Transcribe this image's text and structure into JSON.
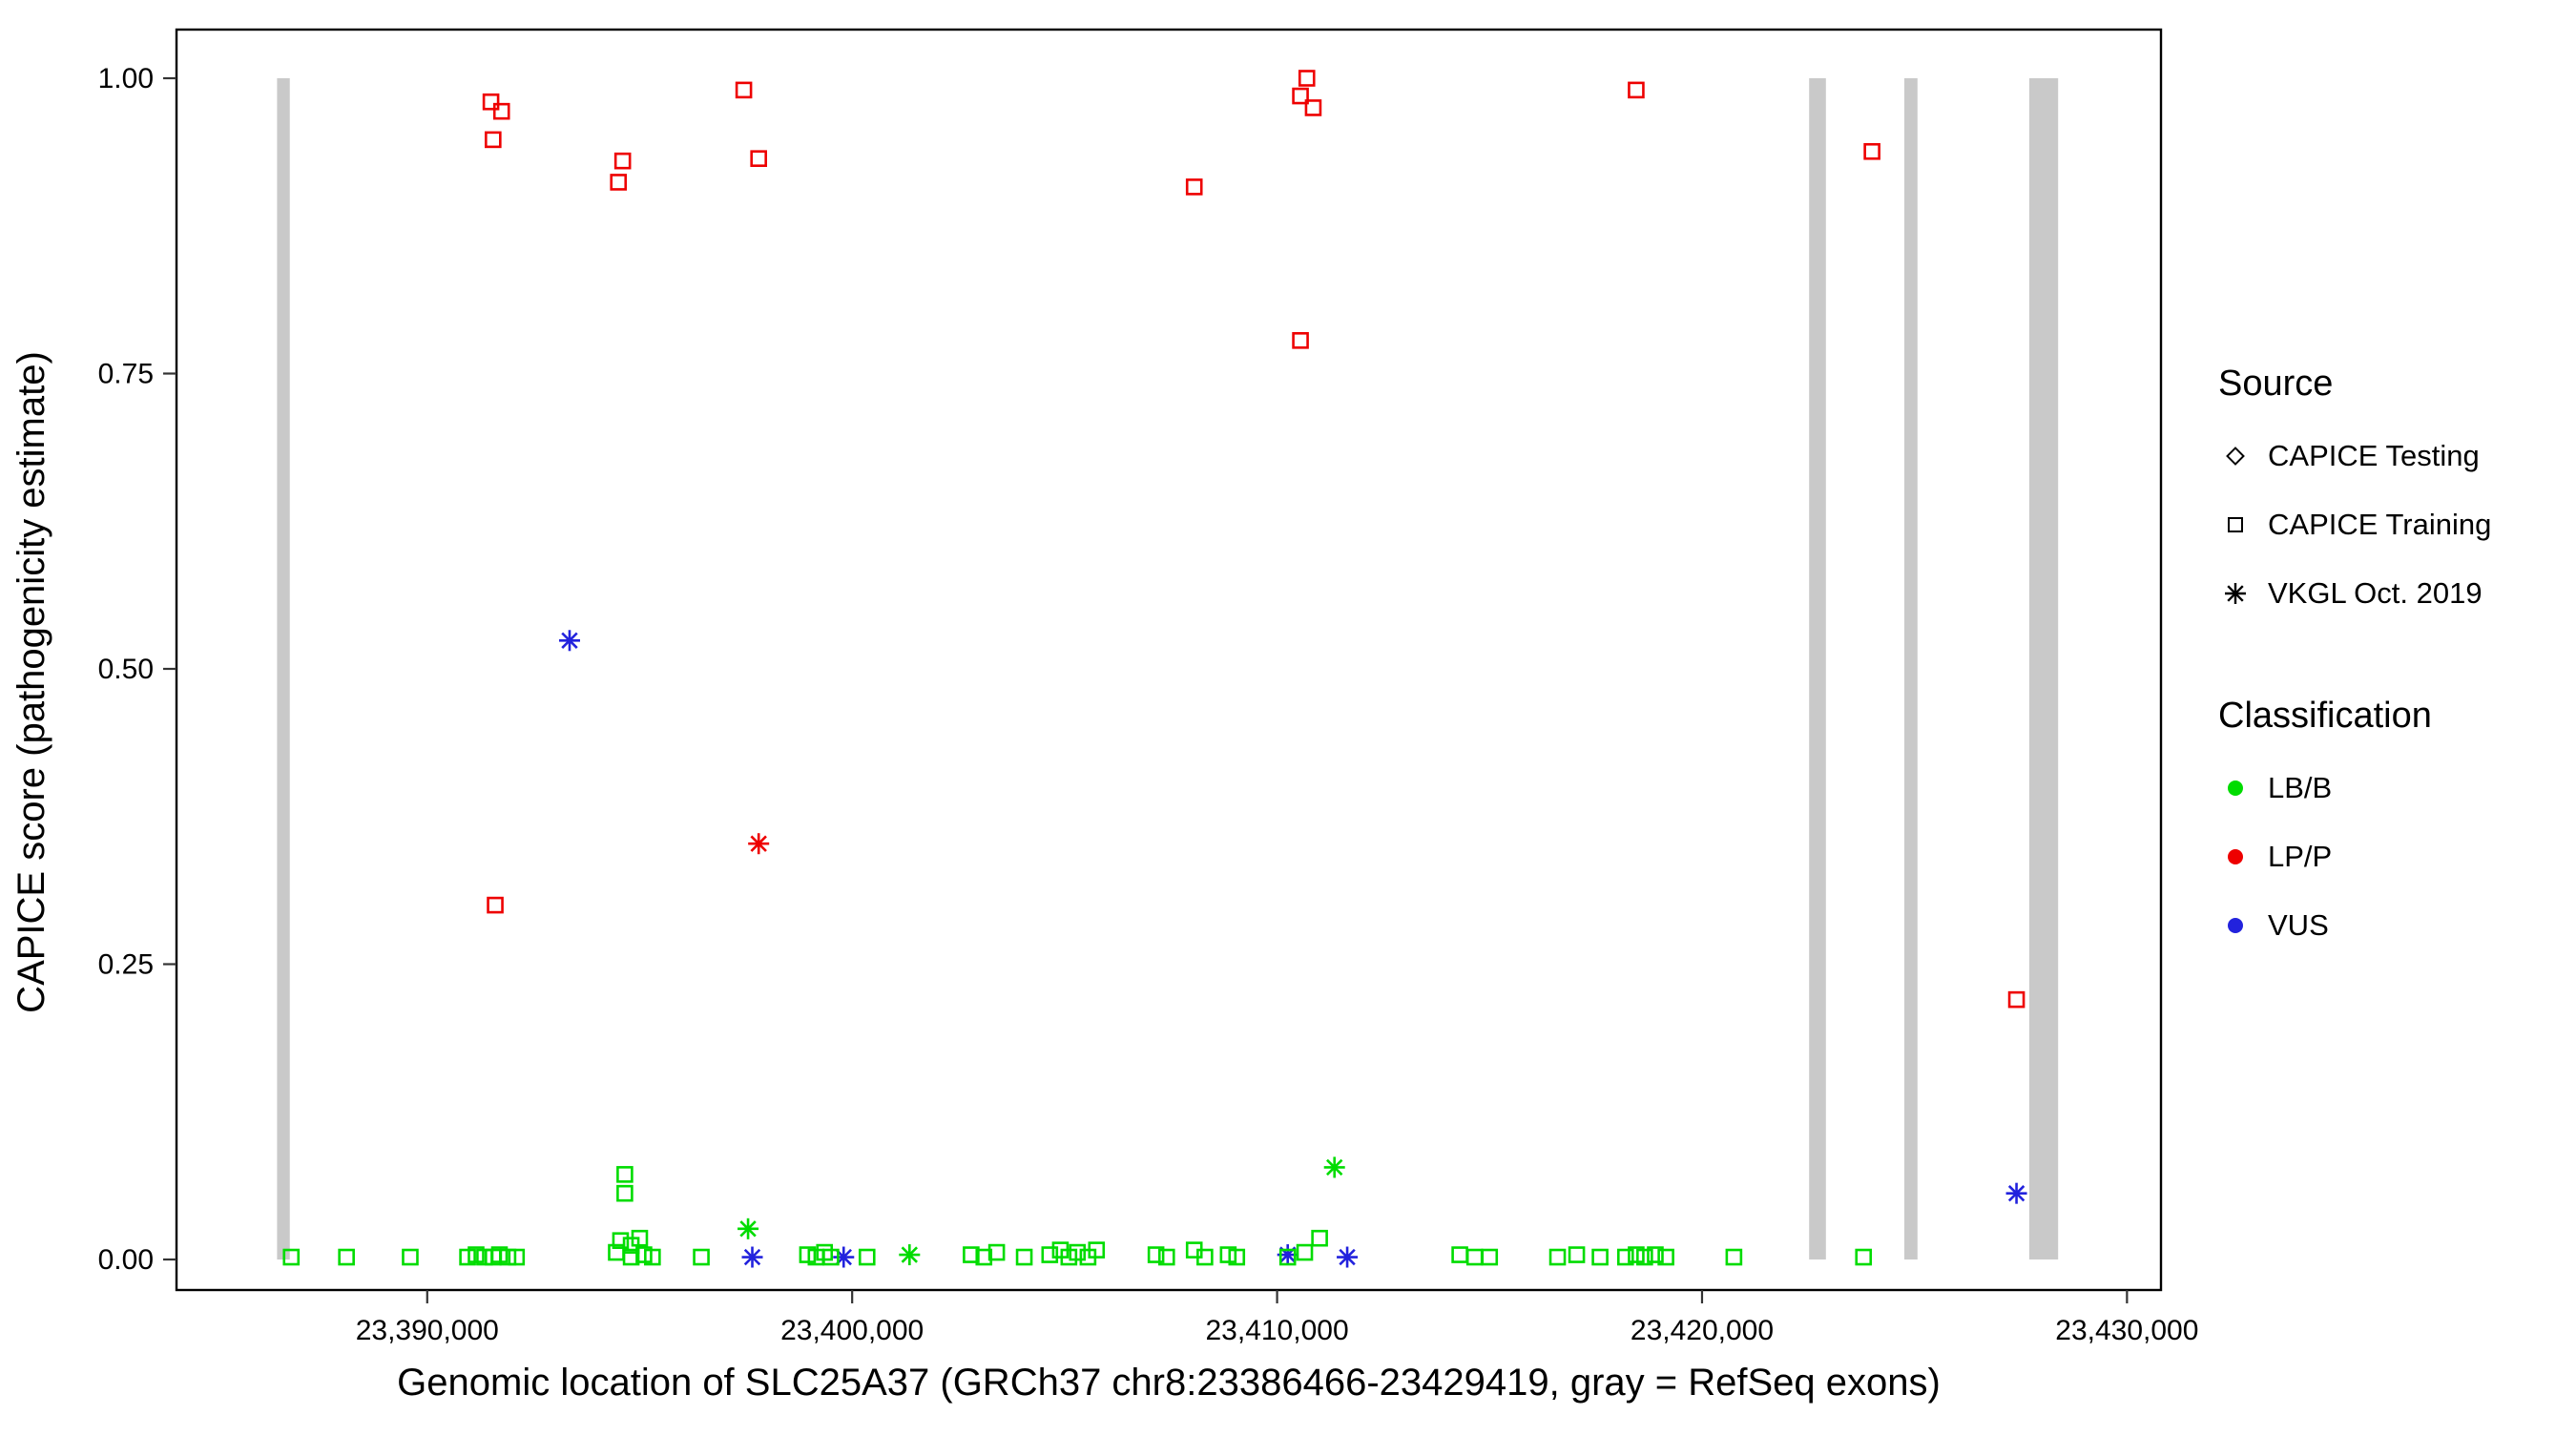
{
  "legend": {
    "source": {
      "title": "Source",
      "items": [
        {
          "label": "CAPICE Testing",
          "marker": "diamond"
        },
        {
          "label": "CAPICE Training",
          "marker": "square"
        },
        {
          "label": "VKGL Oct. 2019",
          "marker": "asterisk"
        }
      ]
    },
    "classification": {
      "title": "Classification",
      "items": [
        {
          "label": "LB/B",
          "color": "#00dc00"
        },
        {
          "label": "LP/P",
          "color": "#ee0000"
        },
        {
          "label": "VUS",
          "color": "#2222dd"
        }
      ]
    }
  },
  "chart_data": {
    "type": "scatter",
    "xlabel": "Genomic location of SLC25A37 (GRCh37 chr8:23386466-23429419, gray = RefSeq exons)",
    "ylabel": "CAPICE score (pathogenicity estimate)",
    "x_domain": [
      23384100,
      23430800
    ],
    "y_domain": [
      0,
      1
    ],
    "grid": false,
    "legend_position": "right",
    "x_ticks": [
      {
        "value": 23390000,
        "label": "23,390,000"
      },
      {
        "value": 23400000,
        "label": "23,400,000"
      },
      {
        "value": 23410000,
        "label": "23,410,000"
      },
      {
        "value": 23420000,
        "label": "23,420,000"
      },
      {
        "value": 23430000,
        "label": "23,430,000"
      }
    ],
    "y_ticks": [
      {
        "value": 0.0,
        "label": "0.00"
      },
      {
        "value": 0.25,
        "label": "0.25"
      },
      {
        "value": 0.5,
        "label": "0.50"
      },
      {
        "value": 0.75,
        "label": "0.75"
      },
      {
        "value": 1.0,
        "label": "1.00"
      }
    ],
    "colors": {
      "LB/B": "#00dc00",
      "LP/P": "#ee0000",
      "VUS": "#2222dd",
      "exon": "#c9c9c9"
    },
    "exons": [
      [
        23386466,
        23386766
      ],
      [
        23422520,
        23422915
      ],
      [
        23424760,
        23425070
      ],
      [
        23427700,
        23428380
      ]
    ],
    "points": [
      {
        "x": 23391500,
        "y": 0.98,
        "cls": "LP/P",
        "src": "CAPICE Training"
      },
      {
        "x": 23391750,
        "y": 0.972,
        "cls": "LP/P",
        "src": "CAPICE Training"
      },
      {
        "x": 23391550,
        "y": 0.948,
        "cls": "LP/P",
        "src": "CAPICE Training"
      },
      {
        "x": 23394600,
        "y": 0.93,
        "cls": "LP/P",
        "src": "CAPICE Training"
      },
      {
        "x": 23394500,
        "y": 0.912,
        "cls": "LP/P",
        "src": "CAPICE Training"
      },
      {
        "x": 23397450,
        "y": 0.99,
        "cls": "LP/P",
        "src": "CAPICE Training"
      },
      {
        "x": 23397800,
        "y": 0.932,
        "cls": "LP/P",
        "src": "CAPICE Training"
      },
      {
        "x": 23408050,
        "y": 0.908,
        "cls": "LP/P",
        "src": "CAPICE Training"
      },
      {
        "x": 23410700,
        "y": 1.0,
        "cls": "LP/P",
        "src": "CAPICE Training"
      },
      {
        "x": 23410550,
        "y": 0.985,
        "cls": "LP/P",
        "src": "CAPICE Training"
      },
      {
        "x": 23410850,
        "y": 0.975,
        "cls": "LP/P",
        "src": "CAPICE Training"
      },
      {
        "x": 23410550,
        "y": 0.778,
        "cls": "LP/P",
        "src": "CAPICE Training"
      },
      {
        "x": 23418450,
        "y": 0.99,
        "cls": "LP/P",
        "src": "CAPICE Training"
      },
      {
        "x": 23424000,
        "y": 0.938,
        "cls": "LP/P",
        "src": "CAPICE Training"
      },
      {
        "x": 23391600,
        "y": 0.3,
        "cls": "LP/P",
        "src": "CAPICE Training"
      },
      {
        "x": 23427400,
        "y": 0.22,
        "cls": "LP/P",
        "src": "CAPICE Training"
      },
      {
        "x": 23397800,
        "y": 0.352,
        "cls": "LP/P",
        "src": "VKGL Oct. 2019"
      },
      {
        "x": 23393350,
        "y": 0.524,
        "cls": "VUS",
        "src": "VKGL Oct. 2019"
      },
      {
        "x": 23427400,
        "y": 0.056,
        "cls": "VUS",
        "src": "VKGL Oct. 2019"
      },
      {
        "x": 23397650,
        "y": 0.002,
        "cls": "VUS",
        "src": "VKGL Oct. 2019"
      },
      {
        "x": 23399800,
        "y": 0.002,
        "cls": "VUS",
        "src": "VKGL Oct. 2019"
      },
      {
        "x": 23410250,
        "y": 0.004,
        "cls": "VUS",
        "src": "VKGL Oct. 2019"
      },
      {
        "x": 23411650,
        "y": 0.002,
        "cls": "VUS",
        "src": "VKGL Oct. 2019"
      },
      {
        "x": 23397550,
        "y": 0.026,
        "cls": "LB/B",
        "src": "VKGL Oct. 2019"
      },
      {
        "x": 23401350,
        "y": 0.004,
        "cls": "LB/B",
        "src": "VKGL Oct. 2019"
      },
      {
        "x": 23411350,
        "y": 0.078,
        "cls": "LB/B",
        "src": "VKGL Oct. 2019"
      },
      {
        "x": 23394650,
        "y": 0.072,
        "cls": "LB/B",
        "src": "CAPICE Training"
      },
      {
        "x": 23394650,
        "y": 0.056,
        "cls": "LB/B",
        "src": "CAPICE Training"
      },
      {
        "x": 23394550,
        "y": 0.016,
        "cls": "LB/B",
        "src": "CAPICE Training"
      },
      {
        "x": 23394800,
        "y": 0.012,
        "cls": "LB/B",
        "src": "CAPICE Training"
      },
      {
        "x": 23395000,
        "y": 0.018,
        "cls": "LB/B",
        "src": "CAPICE Training"
      },
      {
        "x": 23411000,
        "y": 0.018,
        "cls": "LB/B",
        "src": "CAPICE Training"
      },
      {
        "x": 23386800,
        "y": 0.002,
        "cls": "LB/B",
        "src": "CAPICE Training"
      },
      {
        "x": 23388100,
        "y": 0.002,
        "cls": "LB/B",
        "src": "CAPICE Training"
      },
      {
        "x": 23389600,
        "y": 0.002,
        "cls": "LB/B",
        "src": "CAPICE Training"
      },
      {
        "x": 23390950,
        "y": 0.002,
        "cls": "LB/B",
        "src": "CAPICE Training"
      },
      {
        "x": 23391150,
        "y": 0.004,
        "cls": "LB/B",
        "src": "CAPICE Training"
      },
      {
        "x": 23391350,
        "y": 0.002,
        "cls": "LB/B",
        "src": "CAPICE Training"
      },
      {
        "x": 23391550,
        "y": 0.002,
        "cls": "LB/B",
        "src": "CAPICE Training"
      },
      {
        "x": 23391700,
        "y": 0.004,
        "cls": "LB/B",
        "src": "CAPICE Training"
      },
      {
        "x": 23391900,
        "y": 0.002,
        "cls": "LB/B",
        "src": "CAPICE Training"
      },
      {
        "x": 23392100,
        "y": 0.002,
        "cls": "LB/B",
        "src": "CAPICE Training"
      },
      {
        "x": 23394450,
        "y": 0.006,
        "cls": "LB/B",
        "src": "CAPICE Training"
      },
      {
        "x": 23394800,
        "y": 0.002,
        "cls": "LB/B",
        "src": "CAPICE Training"
      },
      {
        "x": 23395100,
        "y": 0.004,
        "cls": "LB/B",
        "src": "CAPICE Training"
      },
      {
        "x": 23395300,
        "y": 0.002,
        "cls": "LB/B",
        "src": "CAPICE Training"
      },
      {
        "x": 23396450,
        "y": 0.002,
        "cls": "LB/B",
        "src": "CAPICE Training"
      },
      {
        "x": 23398950,
        "y": 0.004,
        "cls": "LB/B",
        "src": "CAPICE Training"
      },
      {
        "x": 23399150,
        "y": 0.002,
        "cls": "LB/B",
        "src": "CAPICE Training"
      },
      {
        "x": 23399350,
        "y": 0.006,
        "cls": "LB/B",
        "src": "CAPICE Training"
      },
      {
        "x": 23399500,
        "y": 0.002,
        "cls": "LB/B",
        "src": "CAPICE Training"
      },
      {
        "x": 23400350,
        "y": 0.002,
        "cls": "LB/B",
        "src": "CAPICE Training"
      },
      {
        "x": 23402800,
        "y": 0.004,
        "cls": "LB/B",
        "src": "CAPICE Training"
      },
      {
        "x": 23403100,
        "y": 0.002,
        "cls": "LB/B",
        "src": "CAPICE Training"
      },
      {
        "x": 23403400,
        "y": 0.006,
        "cls": "LB/B",
        "src": "CAPICE Training"
      },
      {
        "x": 23404050,
        "y": 0.002,
        "cls": "LB/B",
        "src": "CAPICE Training"
      },
      {
        "x": 23404650,
        "y": 0.004,
        "cls": "LB/B",
        "src": "CAPICE Training"
      },
      {
        "x": 23404900,
        "y": 0.008,
        "cls": "LB/B",
        "src": "CAPICE Training"
      },
      {
        "x": 23405100,
        "y": 0.002,
        "cls": "LB/B",
        "src": "CAPICE Training"
      },
      {
        "x": 23405300,
        "y": 0.006,
        "cls": "LB/B",
        "src": "CAPICE Training"
      },
      {
        "x": 23405550,
        "y": 0.002,
        "cls": "LB/B",
        "src": "CAPICE Training"
      },
      {
        "x": 23405750,
        "y": 0.008,
        "cls": "LB/B",
        "src": "CAPICE Training"
      },
      {
        "x": 23407150,
        "y": 0.004,
        "cls": "LB/B",
        "src": "CAPICE Training"
      },
      {
        "x": 23407400,
        "y": 0.002,
        "cls": "LB/B",
        "src": "CAPICE Training"
      },
      {
        "x": 23408050,
        "y": 0.008,
        "cls": "LB/B",
        "src": "CAPICE Training"
      },
      {
        "x": 23408300,
        "y": 0.002,
        "cls": "LB/B",
        "src": "CAPICE Training"
      },
      {
        "x": 23408850,
        "y": 0.004,
        "cls": "LB/B",
        "src": "CAPICE Training"
      },
      {
        "x": 23409050,
        "y": 0.002,
        "cls": "LB/B",
        "src": "CAPICE Training"
      },
      {
        "x": 23410250,
        "y": 0.002,
        "cls": "LB/B",
        "src": "CAPICE Training"
      },
      {
        "x": 23410650,
        "y": 0.006,
        "cls": "LB/B",
        "src": "CAPICE Training"
      },
      {
        "x": 23414300,
        "y": 0.004,
        "cls": "LB/B",
        "src": "CAPICE Training"
      },
      {
        "x": 23414650,
        "y": 0.002,
        "cls": "LB/B",
        "src": "CAPICE Training"
      },
      {
        "x": 23415000,
        "y": 0.002,
        "cls": "LB/B",
        "src": "CAPICE Training"
      },
      {
        "x": 23416600,
        "y": 0.002,
        "cls": "LB/B",
        "src": "CAPICE Training"
      },
      {
        "x": 23417050,
        "y": 0.004,
        "cls": "LB/B",
        "src": "CAPICE Training"
      },
      {
        "x": 23417600,
        "y": 0.002,
        "cls": "LB/B",
        "src": "CAPICE Training"
      },
      {
        "x": 23418200,
        "y": 0.002,
        "cls": "LB/B",
        "src": "CAPICE Training"
      },
      {
        "x": 23418450,
        "y": 0.004,
        "cls": "LB/B",
        "src": "CAPICE Training"
      },
      {
        "x": 23418650,
        "y": 0.002,
        "cls": "LB/B",
        "src": "CAPICE Training"
      },
      {
        "x": 23418900,
        "y": 0.004,
        "cls": "LB/B",
        "src": "CAPICE Training"
      },
      {
        "x": 23419150,
        "y": 0.002,
        "cls": "LB/B",
        "src": "CAPICE Training"
      },
      {
        "x": 23420750,
        "y": 0.002,
        "cls": "LB/B",
        "src": "CAPICE Training"
      },
      {
        "x": 23423800,
        "y": 0.002,
        "cls": "LB/B",
        "src": "CAPICE Training"
      }
    ]
  }
}
